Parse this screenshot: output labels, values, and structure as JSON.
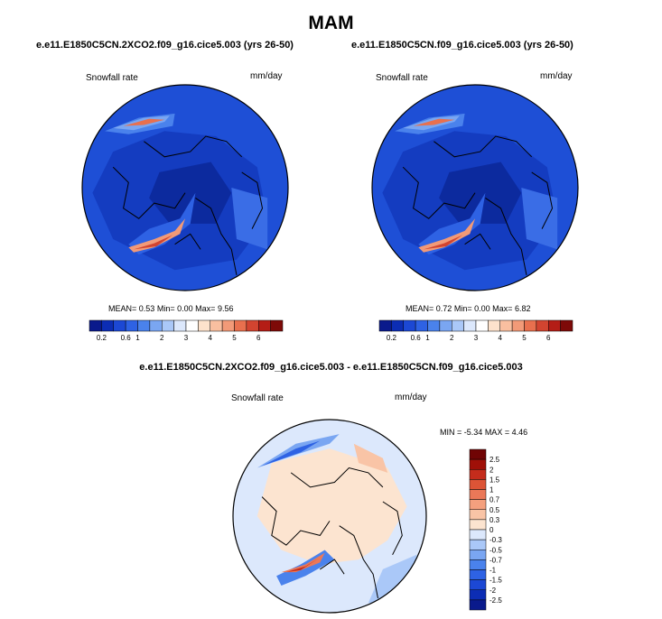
{
  "page": {
    "title": "MAM"
  },
  "colors": {
    "colorbar": [
      "#0a1a8c",
      "#0c2db4",
      "#1c48d4",
      "#2e62e4",
      "#4a82ec",
      "#7aa6f2",
      "#aac8f8",
      "#dce8fc",
      "#ffffff",
      "#fde2cc",
      "#f9bfa0",
      "#f29a78",
      "#e8704e",
      "#d24430",
      "#b41d16",
      "#7e0a08"
    ],
    "diff_colorbar": [
      "#0a1a8c",
      "#0c2db4",
      "#1c48d4",
      "#2e62e4",
      "#4a82ec",
      "#7aa6f2",
      "#aac8f8",
      "#dce8fc",
      "#fce4d0",
      "#f9c4a6",
      "#f4a07e",
      "#ea7858",
      "#dc5436",
      "#c42c1c",
      "#a01008",
      "#700404"
    ]
  },
  "chart_data": [
    {
      "type": "heatmap",
      "title": "e.e11.E1850C5CN.2XCO2.f09_g16.cice5.003 (yrs 26-50)",
      "variable": "Snowfall rate",
      "units": "mm/day",
      "projection": "north polar stereographic",
      "stats": {
        "mean": "0.53",
        "min": "0.00",
        "max": "9.56"
      },
      "colorbar_levels": [
        "0.2",
        "0.6",
        "1",
        "2",
        "3",
        "4",
        "5",
        "6"
      ]
    },
    {
      "type": "heatmap",
      "title": "e.e11.E1850C5CN.f09_g16.cice5.003 (yrs 26-50)",
      "variable": "Snowfall rate",
      "units": "mm/day",
      "projection": "north polar stereographic",
      "stats": {
        "mean": "0.72",
        "min": "0.00",
        "max": "6.82"
      },
      "colorbar_levels": [
        "0.2",
        "0.6",
        "1",
        "2",
        "3",
        "4",
        "5",
        "6"
      ]
    },
    {
      "type": "heatmap",
      "title": "e.e11.E1850C5CN.2XCO2.f09_g16.cice5.003 - e.e11.E1850C5CN.f09_g16.cice5.003",
      "variable": "Snowfall rate",
      "units": "mm/day",
      "projection": "north polar stereographic",
      "stats": {
        "min": "-5.34",
        "max": "4.46"
      },
      "colorbar_levels": [
        "2.5",
        "2",
        "1.5",
        "1",
        "0.7",
        "0.5",
        "0.3",
        "0",
        "-0.3",
        "-0.5",
        "-0.7",
        "-1",
        "-1.5",
        "-2",
        "-2.5"
      ]
    }
  ],
  "labels": {
    "p1": {
      "mean_key": "MEAN=",
      "mean": "0.53",
      "min_key": "Min=",
      "min": "0.00",
      "max_key": "Max=",
      "max": "9.56"
    },
    "p2": {
      "mean_key": "MEAN=",
      "mean": "0.72",
      "min_key": "Min=",
      "min": "0.00",
      "max_key": "Max=",
      "max": "6.82"
    },
    "p3": {
      "min_key": "MIN =",
      "min": "-5.34",
      "max_key": "MAX =",
      "max": "4.46"
    }
  }
}
